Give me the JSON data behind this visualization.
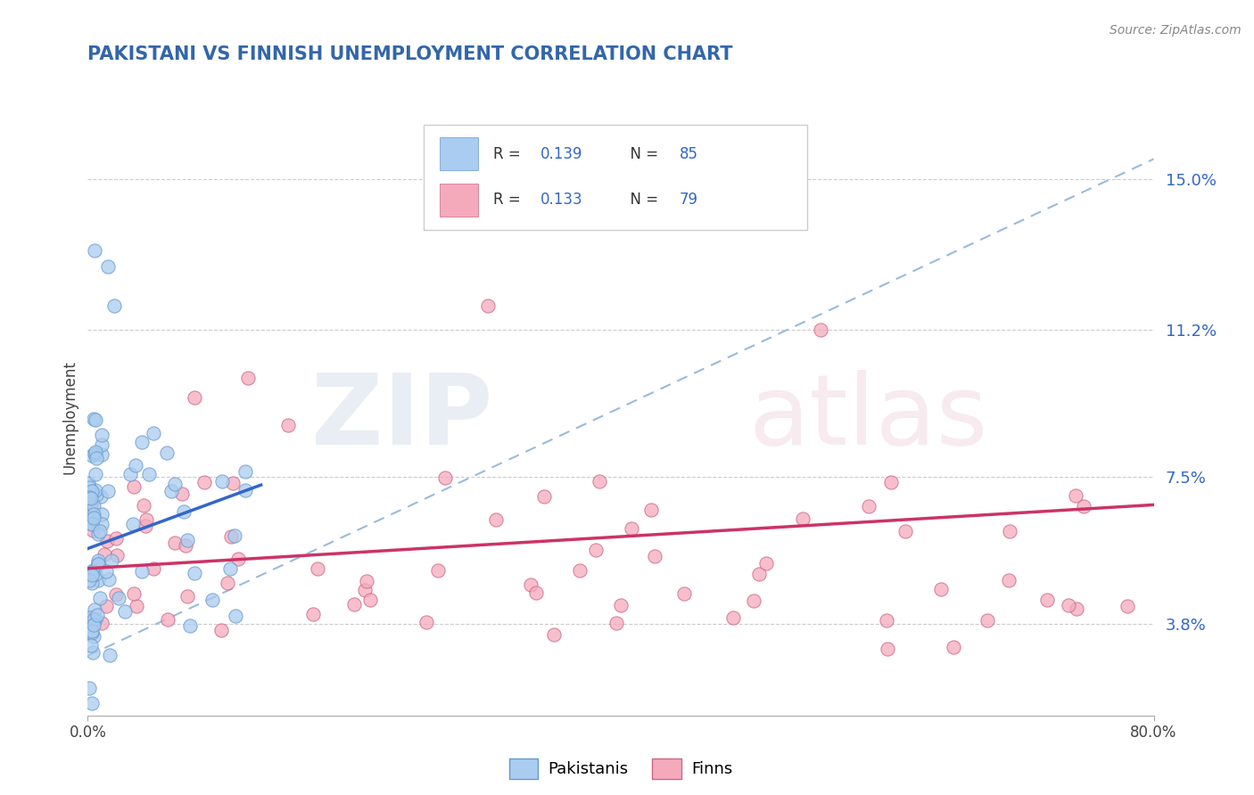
{
  "title": "PAKISTANI VS FINNISH UNEMPLOYMENT CORRELATION CHART",
  "source": "Source: ZipAtlas.com",
  "ylabel": "Unemployment",
  "yticks": [
    0.038,
    0.075,
    0.112,
    0.15
  ],
  "ytick_labels": [
    "3.8%",
    "7.5%",
    "11.2%",
    "15.0%"
  ],
  "xlim": [
    0.0,
    0.8
  ],
  "ylim": [
    0.015,
    0.165
  ],
  "pakistani_color": "#aaccf0",
  "pakistani_edge": "#6699cc",
  "finn_color": "#f5aabc",
  "finn_edge": "#cc6688",
  "trend_pakistani_color": "#3366cc",
  "trend_finn_color": "#cc3366",
  "trend_dashed_color": "#99bbdd",
  "legend_R_val_color": "#3366cc",
  "legend_N_val_color": "#3366cc",
  "legend_label_color": "#333333",
  "legend_R_pakistani": "0.139",
  "legend_N_pakistani": "85",
  "legend_R_finn": "0.133",
  "legend_N_finn": "79",
  "title_color": "#3366aa",
  "source_color": "#888888",
  "ytick_color": "#3366cc",
  "bottom_legend_labels": [
    "Pakistanis",
    "Finns"
  ]
}
